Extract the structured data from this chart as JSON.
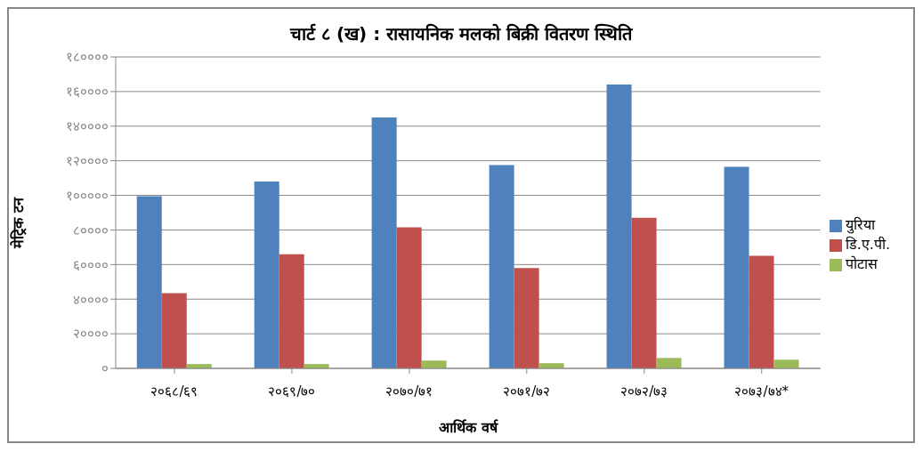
{
  "chart_data": {
    "type": "bar",
    "title": "चार्ट ८ (ख) : रासायनिक मलको बिक्री वितरण स्थिति",
    "xlabel": "आर्थिक वर्ष",
    "ylabel": "मेट्रिक टन",
    "categories": [
      "२०६८/६९",
      "२०६९/७०",
      "२०७०/७१",
      "२०७१/७२",
      "२०७२/७३",
      "२०७३/७४*"
    ],
    "series": [
      {
        "name": "युरिया",
        "color": "#4f81bd",
        "values": [
          99500,
          108000,
          145000,
          117500,
          164000,
          116500
        ]
      },
      {
        "name": "डि.ए.पी.",
        "color": "#c0504d",
        "values": [
          43500,
          66000,
          81500,
          58000,
          87000,
          65000
        ]
      },
      {
        "name": "पोटास",
        "color": "#9bbb59",
        "values": [
          2500,
          2500,
          4500,
          3000,
          6000,
          5000
        ]
      }
    ],
    "ylim": [
      0,
      180000
    ],
    "yticks": [
      {
        "value": 0,
        "label": "०"
      },
      {
        "value": 20000,
        "label": "२००००"
      },
      {
        "value": 40000,
        "label": "४००००"
      },
      {
        "value": 60000,
        "label": "६००००"
      },
      {
        "value": 80000,
        "label": "८००००"
      },
      {
        "value": 100000,
        "label": "१०००००"
      },
      {
        "value": 120000,
        "label": "१२००००"
      },
      {
        "value": 140000,
        "label": "१४००००"
      },
      {
        "value": 160000,
        "label": "१६००००"
      },
      {
        "value": 180000,
        "label": "१८००००"
      }
    ],
    "grid": "y",
    "legend": "right"
  }
}
